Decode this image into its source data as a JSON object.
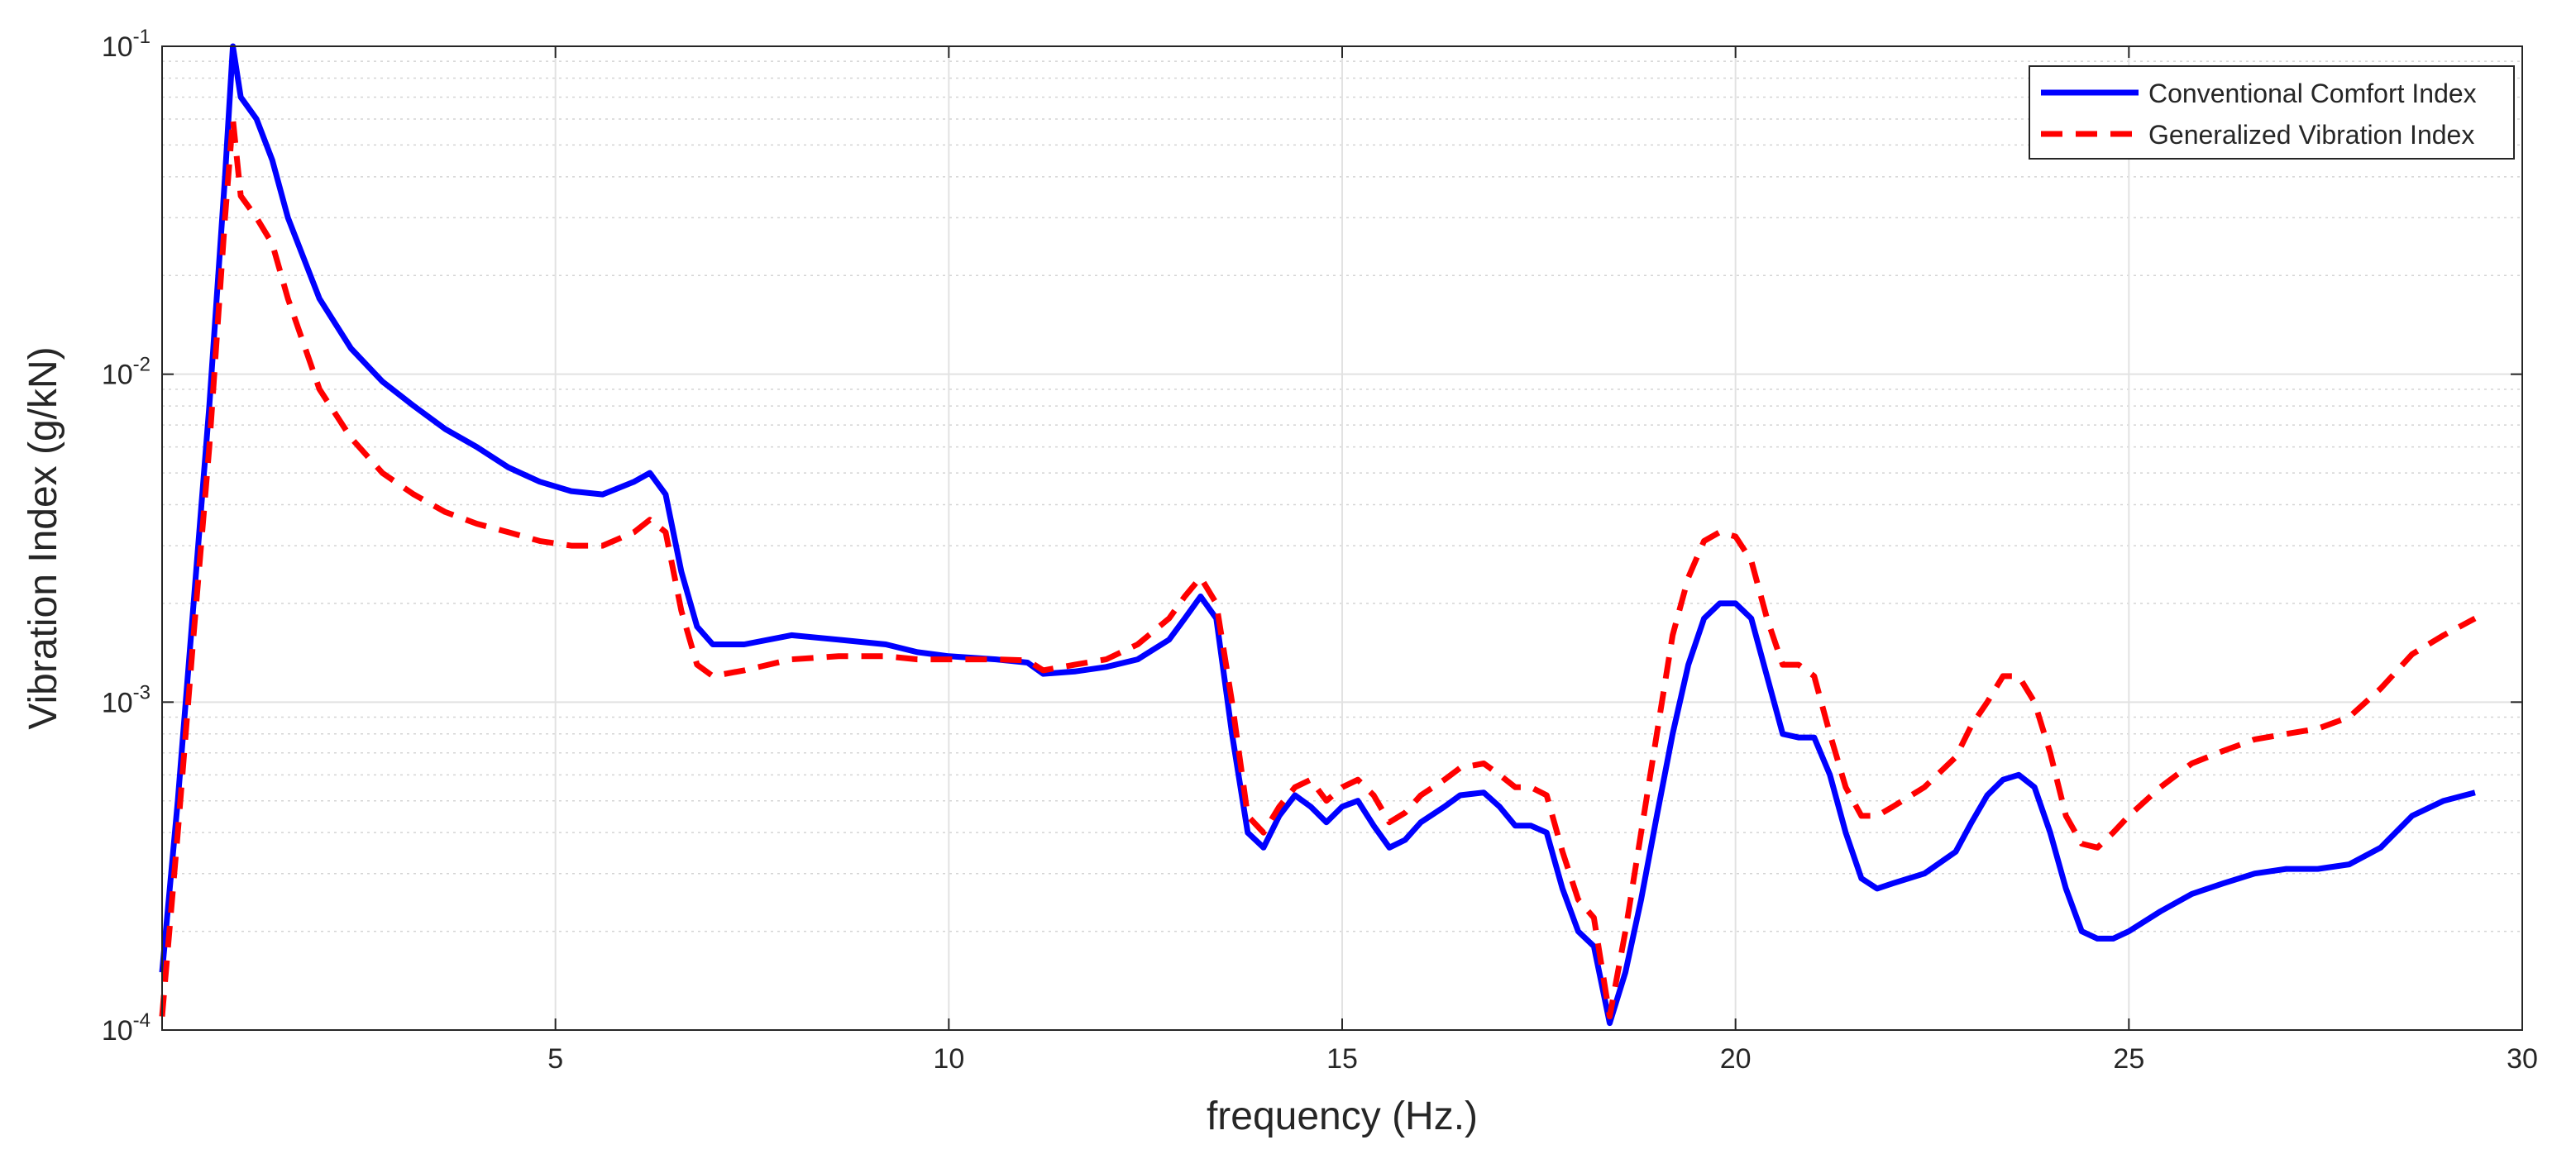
{
  "chart_data": {
    "type": "line",
    "title": "",
    "xlabel": "frequency (Hz.)",
    "ylabel": "Vibration Index (g/kN)",
    "xlim": [
      0,
      30
    ],
    "ylim": [
      0.0001,
      0.1
    ],
    "yscale": "log",
    "x_ticks": [
      5,
      10,
      15,
      20,
      25,
      30
    ],
    "x_tick_labels": [
      "5",
      "10",
      "15",
      "20",
      "25",
      "30"
    ],
    "y_ticks": [
      0.0001,
      0.001,
      0.01,
      0.1
    ],
    "y_tick_labels": [
      {
        "base": "10",
        "exp": "-4"
      },
      {
        "base": "10",
        "exp": "-3"
      },
      {
        "base": "10",
        "exp": "-2"
      },
      {
        "base": "10",
        "exp": "-1"
      }
    ],
    "grid": true,
    "minor_grid": true,
    "legend_position": "top-right",
    "series": [
      {
        "name": "Conventional Comfort Index",
        "color": "#0000ff",
        "style": "solid",
        "x": [
          0,
          0.2,
          0.4,
          0.6,
          0.8,
          0.9,
          1.0,
          1.2,
          1.4,
          1.6,
          2.0,
          2.4,
          2.8,
          3.2,
          3.6,
          4.0,
          4.4,
          4.8,
          5.2,
          5.6,
          6.0,
          6.2,
          6.4,
          6.6,
          6.8,
          7.0,
          7.4,
          8.0,
          8.6,
          9.2,
          9.6,
          10.0,
          10.6,
          11.0,
          11.2,
          11.6,
          12.0,
          12.4,
          12.8,
          13.0,
          13.2,
          13.4,
          13.6,
          13.8,
          14.0,
          14.2,
          14.4,
          14.6,
          14.8,
          15.0,
          15.2,
          15.4,
          15.6,
          15.8,
          16.0,
          16.3,
          16.5,
          16.8,
          17.0,
          17.2,
          17.4,
          17.6,
          17.8,
          18.0,
          18.2,
          18.4,
          18.6,
          18.8,
          19.0,
          19.2,
          19.4,
          19.6,
          19.8,
          20.0,
          20.2,
          20.4,
          20.6,
          20.8,
          21.0,
          21.2,
          21.4,
          21.6,
          21.8,
          22.0,
          22.4,
          22.8,
          23.0,
          23.2,
          23.4,
          23.6,
          23.8,
          24.0,
          24.2,
          24.4,
          24.6,
          24.8,
          25.0,
          25.4,
          25.8,
          26.2,
          26.6,
          27.0,
          27.4,
          27.8,
          28.2,
          28.6,
          29.0,
          29.4
        ],
        "y": [
          0.00015,
          0.0005,
          0.002,
          0.008,
          0.04,
          0.1,
          0.07,
          0.06,
          0.045,
          0.03,
          0.017,
          0.012,
          0.0095,
          0.008,
          0.0068,
          0.006,
          0.0052,
          0.0047,
          0.0044,
          0.0043,
          0.0047,
          0.005,
          0.0043,
          0.0025,
          0.0017,
          0.0015,
          0.0015,
          0.0016,
          0.00155,
          0.0015,
          0.00142,
          0.00138,
          0.00135,
          0.00132,
          0.00122,
          0.00124,
          0.00128,
          0.00135,
          0.00155,
          0.0018,
          0.0021,
          0.0018,
          0.0008,
          0.0004,
          0.00036,
          0.00045,
          0.00052,
          0.00048,
          0.00043,
          0.00048,
          0.0005,
          0.00042,
          0.00036,
          0.00038,
          0.00043,
          0.00048,
          0.00052,
          0.00053,
          0.00048,
          0.00042,
          0.00042,
          0.0004,
          0.00027,
          0.0002,
          0.00018,
          0.000105,
          0.00015,
          0.00025,
          0.00045,
          0.0008,
          0.0013,
          0.0018,
          0.002,
          0.002,
          0.0018,
          0.0012,
          0.0008,
          0.00078,
          0.00078,
          0.0006,
          0.0004,
          0.00029,
          0.00027,
          0.00028,
          0.0003,
          0.00035,
          0.00043,
          0.00052,
          0.00058,
          0.0006,
          0.00055,
          0.0004,
          0.00027,
          0.0002,
          0.00019,
          0.00019,
          0.0002,
          0.00023,
          0.00026,
          0.00028,
          0.0003,
          0.00031,
          0.00031,
          0.00032,
          0.00036,
          0.00045,
          0.0005,
          0.00053
        ]
      },
      {
        "name": "Generalized Vibration Index",
        "color": "#ff0000",
        "style": "dashed",
        "x": [
          0,
          0.2,
          0.4,
          0.6,
          0.8,
          0.9,
          1.0,
          1.2,
          1.4,
          1.6,
          2.0,
          2.4,
          2.8,
          3.2,
          3.6,
          4.0,
          4.4,
          4.8,
          5.2,
          5.6,
          6.0,
          6.2,
          6.4,
          6.6,
          6.8,
          7.0,
          7.4,
          8.0,
          8.6,
          9.2,
          9.6,
          10.0,
          10.6,
          11.0,
          11.2,
          11.6,
          12.0,
          12.4,
          12.8,
          13.0,
          13.2,
          13.4,
          13.6,
          13.8,
          14.0,
          14.2,
          14.4,
          14.6,
          14.8,
          15.0,
          15.2,
          15.4,
          15.6,
          15.8,
          16.0,
          16.3,
          16.5,
          16.8,
          17.0,
          17.2,
          17.4,
          17.6,
          17.8,
          18.0,
          18.2,
          18.4,
          18.6,
          18.8,
          19.0,
          19.2,
          19.4,
          19.6,
          19.8,
          20.0,
          20.2,
          20.4,
          20.6,
          20.8,
          21.0,
          21.2,
          21.4,
          21.6,
          21.8,
          22.0,
          22.4,
          22.8,
          23.0,
          23.2,
          23.4,
          23.6,
          23.8,
          24.0,
          24.2,
          24.4,
          24.6,
          24.8,
          25.0,
          25.4,
          25.8,
          26.2,
          26.6,
          27.0,
          27.4,
          27.8,
          28.2,
          28.6,
          29.0,
          29.4
        ],
        "y": [
          0.00011,
          0.0004,
          0.0016,
          0.006,
          0.03,
          0.06,
          0.035,
          0.03,
          0.025,
          0.017,
          0.009,
          0.0064,
          0.005,
          0.0043,
          0.0038,
          0.0035,
          0.0033,
          0.0031,
          0.003,
          0.003,
          0.0033,
          0.0036,
          0.0033,
          0.0019,
          0.0013,
          0.0012,
          0.00125,
          0.00135,
          0.00138,
          0.00138,
          0.00135,
          0.00135,
          0.00135,
          0.00134,
          0.00125,
          0.0013,
          0.00135,
          0.0015,
          0.0018,
          0.0021,
          0.0024,
          0.002,
          0.001,
          0.00045,
          0.0004,
          0.00048,
          0.00055,
          0.00058,
          0.0005,
          0.00055,
          0.00058,
          0.00052,
          0.00043,
          0.00046,
          0.00052,
          0.00058,
          0.00063,
          0.00065,
          0.0006,
          0.00055,
          0.00055,
          0.00052,
          0.00035,
          0.00025,
          0.00022,
          0.00011,
          0.0002,
          0.0004,
          0.0008,
          0.0016,
          0.0024,
          0.0031,
          0.0033,
          0.0032,
          0.0027,
          0.0018,
          0.0013,
          0.0013,
          0.0012,
          0.0008,
          0.00055,
          0.00045,
          0.00045,
          0.00048,
          0.00055,
          0.00068,
          0.00085,
          0.001,
          0.0012,
          0.0012,
          0.001,
          0.0007,
          0.00045,
          0.00037,
          0.00036,
          0.0004,
          0.00045,
          0.00055,
          0.00065,
          0.00071,
          0.00077,
          0.0008,
          0.00083,
          0.0009,
          0.0011,
          0.0014,
          0.0016,
          0.0018
        ]
      }
    ]
  }
}
